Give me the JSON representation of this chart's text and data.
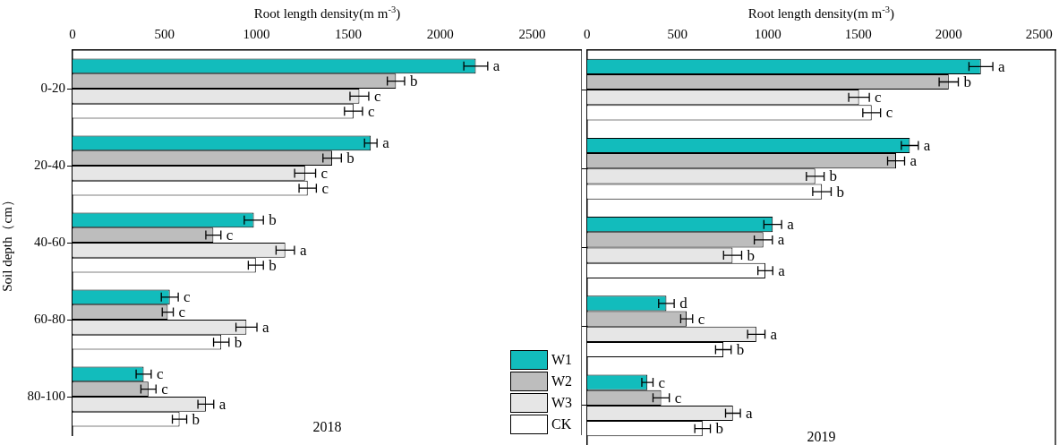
{
  "chart_data": [
    {
      "type": "bar",
      "orientation": "horizontal",
      "xlabel": "Root length density(m m$^{-3}$)",
      "ylabel": "Soil depth（cm）",
      "categories": [
        "0-20",
        "20-40",
        "40-60",
        "60-80",
        "80-100"
      ],
      "xlim": [
        0,
        2770
      ],
      "xticks": [
        0,
        500,
        1000,
        1500,
        2000,
        2500
      ],
      "legend": "bottom right",
      "annotations": [
        "2018"
      ],
      "series": [
        {
          "name": "W1",
          "color": "#12bcbc",
          "values": [
            2193,
            1622,
            986,
            529,
            387
          ],
          "errors": [
            65,
            34,
            52,
            46,
            41
          ],
          "value_labels": [
            "a",
            "a",
            "b",
            "c",
            "c"
          ]
        },
        {
          "name": "W2",
          "color": "#bdbdbd",
          "values": [
            1759,
            1412,
            766,
            518,
            413
          ],
          "errors": [
            47,
            50,
            41,
            30,
            41
          ],
          "value_labels": [
            "b",
            "b",
            "c",
            "c",
            "c"
          ]
        },
        {
          "name": "W3",
          "color": "#e6e6e6",
          "values": [
            1560,
            1265,
            1157,
            946,
            725
          ],
          "errors": [
            51,
            57,
            50,
            57,
            43
          ],
          "value_labels": [
            "c",
            "c",
            "a",
            "a",
            "a"
          ]
        },
        {
          "name": "CK",
          "color": "#ffffff",
          "values": [
            1528,
            1279,
            997,
            809,
            582
          ],
          "errors": [
            49,
            47,
            41,
            42,
            39
          ],
          "value_labels": [
            "c",
            "c",
            "b",
            "b",
            "b"
          ]
        }
      ]
    },
    {
      "type": "bar",
      "orientation": "horizontal",
      "xlabel": "Root length density(m m$^{-3}$)",
      "categories": [
        null,
        null,
        null,
        null,
        null
      ],
      "tick_labels": "x",
      "xlim": [
        0,
        2590
      ],
      "xticks": [
        0,
        500,
        1000,
        1500,
        2000,
        2500
      ],
      "annotations": [
        "2019"
      ],
      "series": [
        {
          "color": "#12bcbc",
          "values": [
            2178,
            1785,
            1027,
            439,
            334
          ],
          "errors": [
            66,
            47,
            49,
            43,
            31
          ],
          "value_labels": [
            "a",
            "a",
            "a",
            "d",
            "c"
          ]
        },
        {
          "color": "#bdbdbd",
          "values": [
            2000,
            1709,
            975,
            551,
            410
          ],
          "errors": [
            53,
            47,
            50,
            33,
            45
          ],
          "value_labels": [
            "b",
            "a",
            "a",
            "c",
            "c"
          ]
        },
        {
          "color": "#e6e6e6",
          "values": [
            1504,
            1262,
            805,
            936,
            807
          ],
          "errors": [
            57,
            49,
            50,
            48,
            41
          ],
          "value_labels": [
            "c",
            "b",
            "b",
            "a",
            "a"
          ]
        },
        {
          "color": "#ffffff",
          "values": [
            1574,
            1299,
            986,
            754,
            639
          ],
          "errors": [
            49,
            51,
            41,
            43,
            43
          ],
          "value_labels": [
            "c",
            "b",
            "a",
            "b",
            "b"
          ]
        }
      ]
    }
  ]
}
